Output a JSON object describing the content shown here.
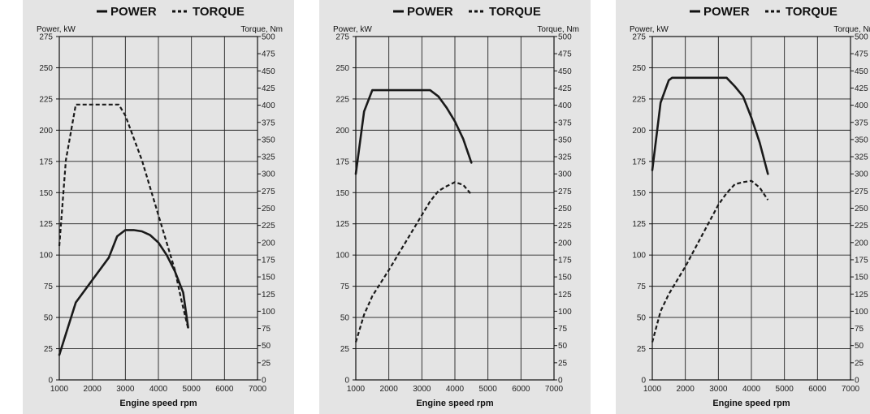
{
  "chart_data": [
    {
      "type": "line",
      "legend": [
        "POWER",
        "TORQUE"
      ],
      "ylabel_left": "Power, kW",
      "ylabel_right": "Torque, Nm",
      "xlabel": "Engine speed rpm",
      "xlim": [
        1000,
        7000
      ],
      "ylim_left": [
        0,
        275
      ],
      "ylim_right": [
        0,
        500
      ],
      "x_ticks": [
        "1000",
        "2000",
        "3000",
        "4000",
        "5000",
        "6000",
        "7000"
      ],
      "y_left_ticks": [
        "0",
        "25",
        "50",
        "75",
        "100",
        "125",
        "150",
        "175",
        "200",
        "225",
        "250",
        "275"
      ],
      "y_right_ticks": [
        "0",
        "25",
        "50",
        "75",
        "100",
        "125",
        "150",
        "175",
        "200",
        "225",
        "250",
        "275",
        "300",
        "325",
        "350",
        "375",
        "400",
        "425",
        "450",
        "475",
        "500"
      ],
      "grid": true,
      "series": [
        {
          "name": "POWER",
          "axis": "left",
          "style": "solid",
          "x": [
            1000,
            1500,
            2000,
            2500,
            2750,
            3000,
            3250,
            3500,
            3750,
            4000,
            4250,
            4500,
            4750,
            4900
          ],
          "y": [
            20,
            62,
            80,
            98,
            115,
            120,
            120,
            119,
            116,
            110,
            100,
            87,
            70,
            42
          ]
        },
        {
          "name": "TORQUE",
          "axis": "right",
          "style": "dashed",
          "x": [
            1000,
            1200,
            1500,
            2000,
            2500,
            2800,
            3000,
            3500,
            4000,
            4500,
            4700,
            4900
          ],
          "y": [
            195,
            320,
            401,
            401,
            401,
            401,
            385,
            320,
            240,
            160,
            115,
            75
          ]
        }
      ]
    },
    {
      "type": "line",
      "legend": [
        "POWER",
        "TORQUE"
      ],
      "ylabel_left": "Power, kW",
      "ylabel_right": "Torque, Nm",
      "xlabel": "Engine speed rpm",
      "xlim": [
        1000,
        7000
      ],
      "ylim_left": [
        0,
        275
      ],
      "ylim_right": [
        0,
        500
      ],
      "x_ticks": [
        "1000",
        "2000",
        "3000",
        "4000",
        "5000",
        "6000",
        "7000"
      ],
      "y_left_ticks": [
        "0",
        "25",
        "50",
        "75",
        "100",
        "125",
        "150",
        "175",
        "200",
        "225",
        "250",
        "275"
      ],
      "y_right_ticks": [
        "0",
        "25",
        "50",
        "75",
        "100",
        "125",
        "150",
        "175",
        "200",
        "225",
        "250",
        "275",
        "300",
        "325",
        "350",
        "375",
        "400",
        "425",
        "450",
        "475",
        "500"
      ],
      "grid": true,
      "series": [
        {
          "name": "POWER",
          "axis": "left",
          "style": "solid",
          "x": [
            1000,
            1250,
            1500,
            2000,
            2500,
            3000,
            3250,
            3500,
            3750,
            4000,
            4250,
            4500
          ],
          "y": [
            165,
            215,
            232,
            232,
            232,
            232,
            232,
            227,
            218,
            207,
            193,
            174
          ]
        },
        {
          "name": "TORQUE",
          "axis": "right",
          "style": "dashed",
          "x": [
            1000,
            1250,
            1500,
            2000,
            2500,
            3000,
            3250,
            3500,
            3750,
            4000,
            4250,
            4500
          ],
          "y": [
            55,
            95,
            122,
            160,
            200,
            240,
            260,
            275,
            282,
            288,
            284,
            270
          ]
        }
      ]
    },
    {
      "type": "line",
      "legend": [
        "POWER",
        "TORQUE"
      ],
      "ylabel_left": "Power, kW",
      "ylabel_right": "Torque, Nm",
      "xlabel": "Engine speed rpm",
      "xlim": [
        1000,
        7000
      ],
      "ylim_left": [
        0,
        275
      ],
      "ylim_right": [
        0,
        500
      ],
      "x_ticks": [
        "1000",
        "2000",
        "3000",
        "4000",
        "5000",
        "6000",
        "7000"
      ],
      "y_left_ticks": [
        "0",
        "25",
        "50",
        "75",
        "100",
        "125",
        "150",
        "175",
        "200",
        "225",
        "250",
        "275"
      ],
      "y_right_ticks": [
        "0",
        "25",
        "50",
        "75",
        "100",
        "125",
        "150",
        "175",
        "200",
        "225",
        "250",
        "275",
        "300",
        "325",
        "350",
        "375",
        "400",
        "425",
        "450",
        "475",
        "500"
      ],
      "grid": true,
      "series": [
        {
          "name": "POWER",
          "axis": "left",
          "style": "solid",
          "x": [
            1000,
            1250,
            1500,
            1600,
            2000,
            2500,
            3000,
            3250,
            3500,
            3750,
            4000,
            4250,
            4500
          ],
          "y": [
            168,
            222,
            240,
            242,
            242,
            242,
            242,
            242,
            235,
            227,
            210,
            190,
            165
          ]
        },
        {
          "name": "TORQUE",
          "axis": "right",
          "style": "dashed",
          "x": [
            1000,
            1250,
            1500,
            2000,
            2500,
            3000,
            3250,
            3500,
            3750,
            4000,
            4250,
            4500
          ],
          "y": [
            55,
            100,
            125,
            165,
            210,
            255,
            272,
            285,
            288,
            290,
            280,
            262
          ]
        }
      ]
    }
  ]
}
